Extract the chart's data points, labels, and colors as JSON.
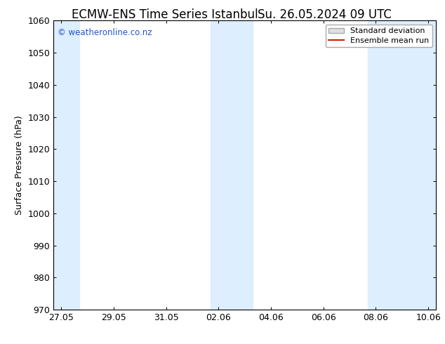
{
  "title_left": "ECMW-ENS Time Series Istanbul",
  "title_right": "Su. 26.05.2024 09 UTC",
  "ylabel": "Surface Pressure (hPa)",
  "ylim": [
    970,
    1060
  ],
  "yticks": [
    970,
    980,
    990,
    1000,
    1010,
    1020,
    1030,
    1040,
    1050,
    1060
  ],
  "xtick_labels": [
    "27.05",
    "29.05",
    "31.05",
    "02.06",
    "04.06",
    "06.06",
    "08.06",
    "10.06"
  ],
  "total_days": 15,
  "xtick_positions_days": [
    0,
    2,
    4,
    6,
    8,
    10,
    12,
    14
  ],
  "shaded_bands": [
    {
      "start_day": -0.3,
      "end_day": 0.7
    },
    {
      "start_day": 5.7,
      "end_day": 7.3
    },
    {
      "start_day": 11.7,
      "end_day": 14.3
    }
  ],
  "shade_color": "#ddeeff",
  "watermark_text": "© weatheronline.co.nz",
  "watermark_color": "#2255cc",
  "legend_std_label": "Standard deviation",
  "legend_ens_label": "Ensemble mean run",
  "legend_std_facecolor": "#e0e0e0",
  "legend_std_edgecolor": "#aaaaaa",
  "legend_ens_color": "#cc2200",
  "bg_color": "#ffffff",
  "title_fontsize": 12,
  "ylabel_fontsize": 9,
  "tick_fontsize": 9,
  "legend_fontsize": 8
}
